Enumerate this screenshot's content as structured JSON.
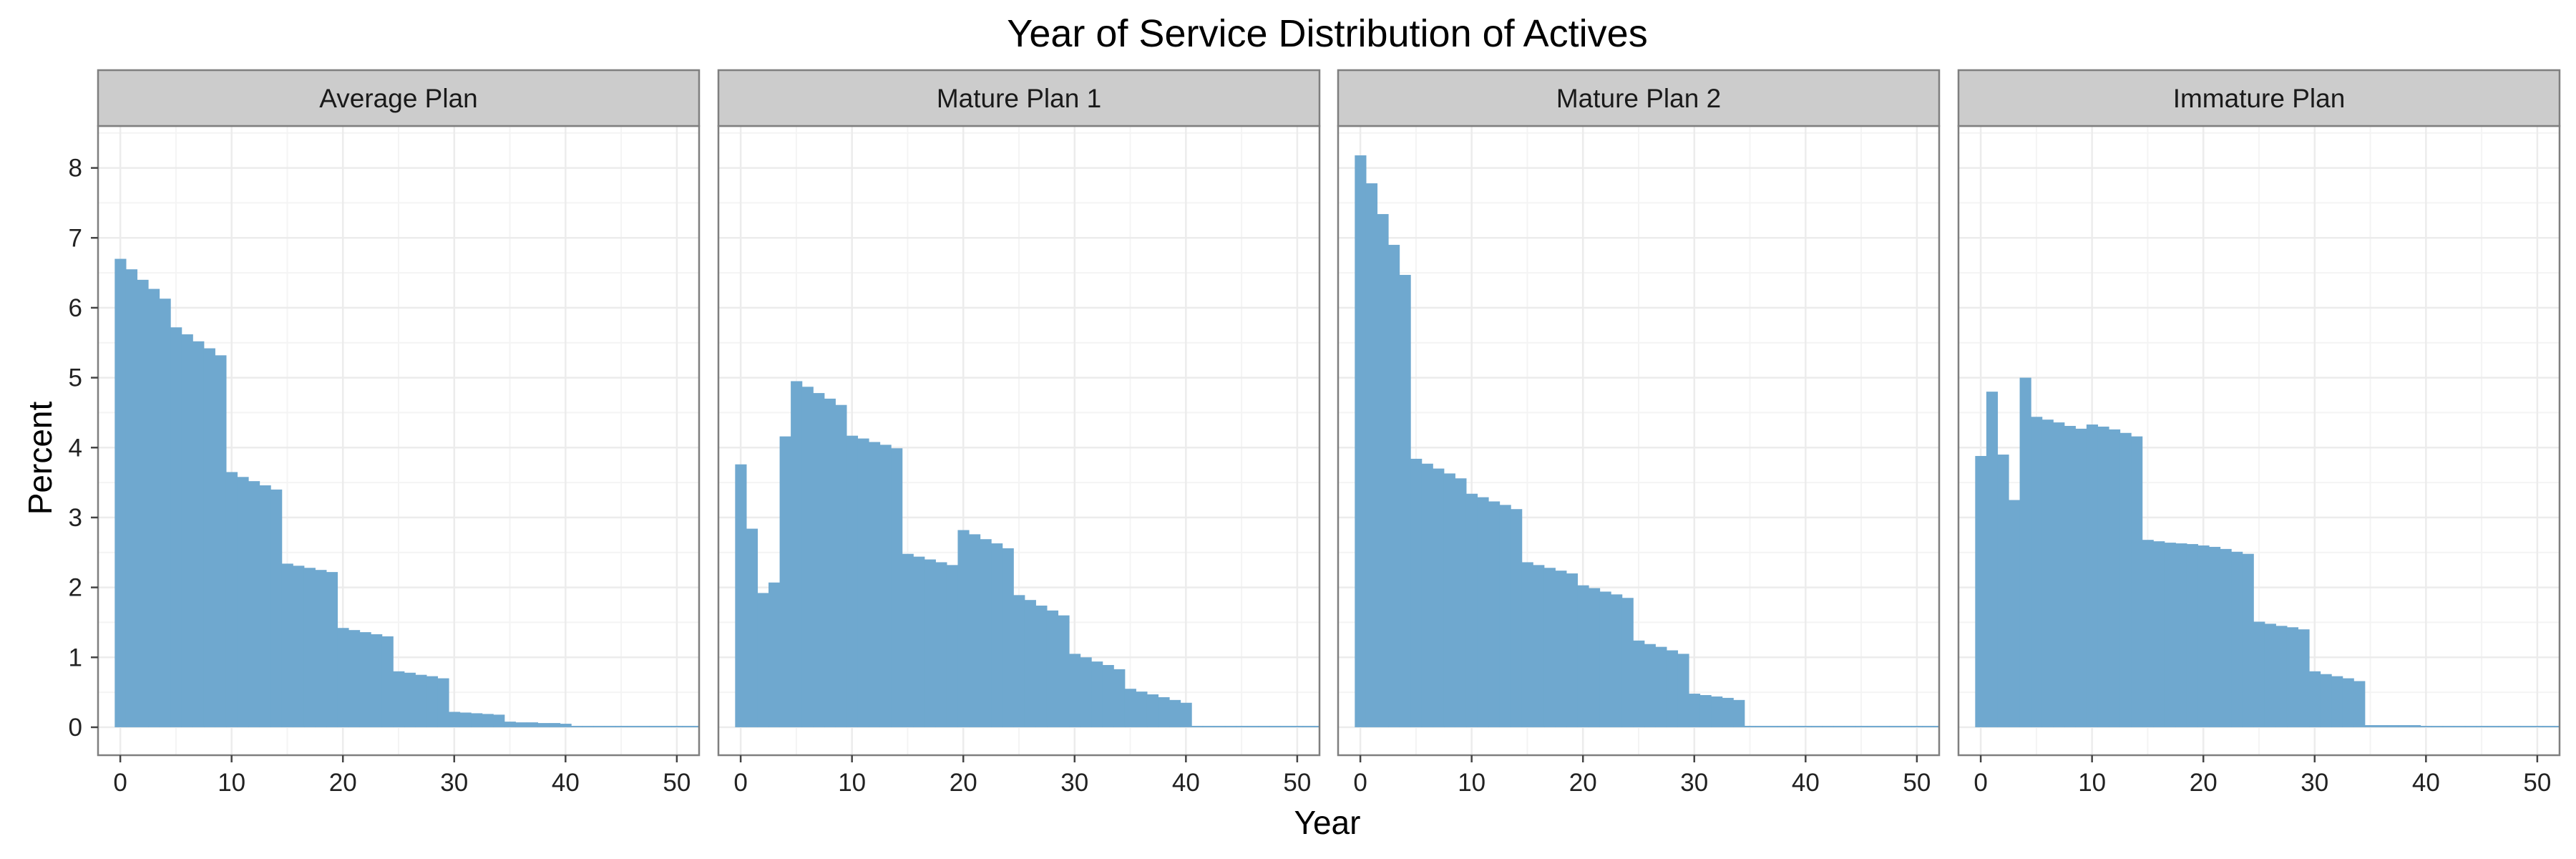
{
  "chart_data": {
    "type": "bar",
    "title": "Year of Service Distribution of Actives",
    "xlabel": "Year",
    "ylabel": "Percent",
    "xlim": [
      -2,
      52
    ],
    "ylim": [
      -0.4,
      8.6
    ],
    "xticks": [
      0,
      10,
      20,
      30,
      40,
      50
    ],
    "yticks": [
      0,
      1,
      2,
      3,
      4,
      5,
      6,
      7,
      8
    ],
    "grid": true,
    "legend": "none",
    "bar_color": "#6fa8cf",
    "panel_border_color": "#7f7f7f",
    "strip_fill": "#cccccc",
    "grid_color": "#ececec",
    "x": [
      0,
      1,
      2,
      3,
      4,
      5,
      6,
      7,
      8,
      9,
      10,
      11,
      12,
      13,
      14,
      15,
      16,
      17,
      18,
      19,
      20,
      21,
      22,
      23,
      24,
      25,
      26,
      27,
      28,
      29,
      30,
      31,
      32,
      33,
      34,
      35,
      36,
      37,
      38,
      39,
      40,
      41,
      42,
      43,
      44,
      45,
      46,
      47,
      48,
      49,
      50,
      51,
      52
    ],
    "panels": [
      {
        "name": "Average Plan",
        "values": [
          6.7,
          6.55,
          6.4,
          6.27,
          6.13,
          5.72,
          5.62,
          5.52,
          5.42,
          5.32,
          3.65,
          3.58,
          3.52,
          3.46,
          3.4,
          2.34,
          2.31,
          2.28,
          2.25,
          2.22,
          1.42,
          1.39,
          1.36,
          1.33,
          1.3,
          0.8,
          0.78,
          0.75,
          0.73,
          0.7,
          0.22,
          0.21,
          0.2,
          0.19,
          0.18,
          0.08,
          0.07,
          0.07,
          0.06,
          0.06,
          0.05,
          0.02,
          0.02,
          0.02,
          0.02,
          0.02,
          0.02,
          0.02,
          0.02,
          0.02,
          0.02,
          0.02,
          0.02
        ]
      },
      {
        "name": "Mature Plan 1",
        "values": [
          3.76,
          2.84,
          1.92,
          2.07,
          4.16,
          4.95,
          4.87,
          4.78,
          4.7,
          4.61,
          4.17,
          4.13,
          4.08,
          4.04,
          3.99,
          2.48,
          2.44,
          2.4,
          2.36,
          2.32,
          2.82,
          2.76,
          2.69,
          2.63,
          2.56,
          1.89,
          1.82,
          1.74,
          1.67,
          1.6,
          1.05,
          1.0,
          0.94,
          0.89,
          0.83,
          0.55,
          0.51,
          0.47,
          0.43,
          0.39,
          0.35,
          0.02,
          0.02,
          0.02,
          0.02,
          0.02,
          0.02,
          0.02,
          0.02,
          0.02,
          0.02,
          0.02,
          0.02
        ]
      },
      {
        "name": "Mature Plan 2",
        "values": [
          8.18,
          7.78,
          7.34,
          6.9,
          6.47,
          3.84,
          3.77,
          3.7,
          3.63,
          3.56,
          3.34,
          3.29,
          3.23,
          3.18,
          3.12,
          2.36,
          2.32,
          2.28,
          2.24,
          2.2,
          2.03,
          1.99,
          1.94,
          1.9,
          1.85,
          1.24,
          1.19,
          1.15,
          1.1,
          1.05,
          0.48,
          0.46,
          0.44,
          0.42,
          0.39,
          0.02,
          0.02,
          0.02,
          0.02,
          0.02,
          0.02,
          0.02,
          0.02,
          0.02,
          0.02,
          0.02,
          0.02,
          0.02,
          0.02,
          0.02,
          0.02,
          0.02,
          0.02
        ]
      },
      {
        "name": "Immature Plan",
        "values": [
          3.88,
          4.8,
          3.9,
          3.25,
          5.0,
          4.44,
          4.4,
          4.36,
          4.31,
          4.27,
          4.33,
          4.3,
          4.26,
          4.21,
          4.16,
          2.68,
          2.66,
          2.64,
          2.63,
          2.62,
          2.6,
          2.58,
          2.55,
          2.51,
          2.48,
          1.51,
          1.48,
          1.45,
          1.43,
          1.4,
          0.8,
          0.76,
          0.73,
          0.7,
          0.66,
          0.03,
          0.03,
          0.03,
          0.03,
          0.03,
          0.02,
          0.02,
          0.02,
          0.02,
          0.02,
          0.02,
          0.02,
          0.02,
          0.02,
          0.02,
          0.02,
          0.02,
          0.02
        ]
      }
    ]
  }
}
